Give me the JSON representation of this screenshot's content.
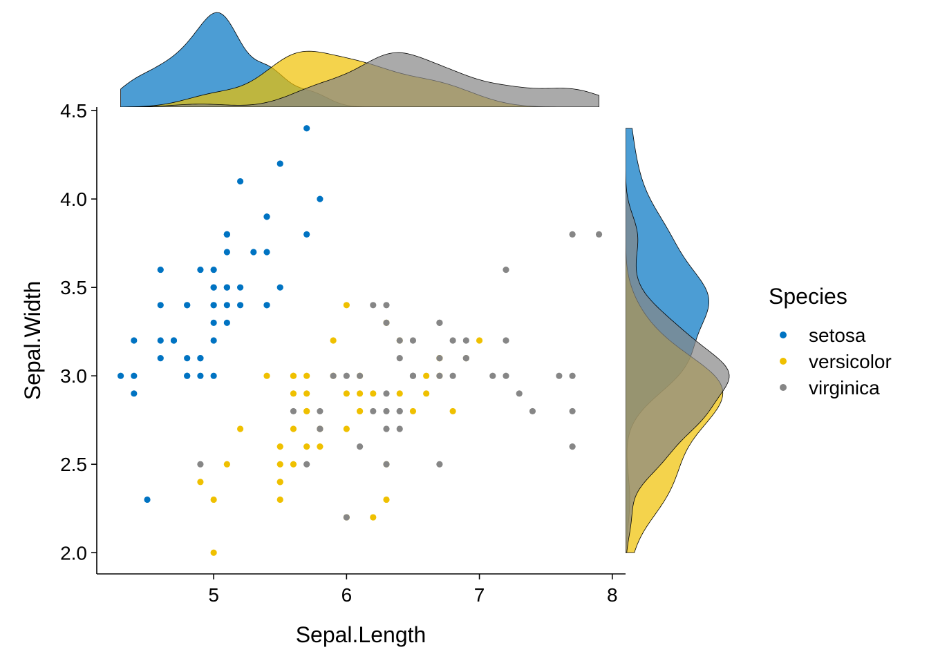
{
  "chart_data": {
    "type": "scatter",
    "xlabel": "Sepal.Length",
    "ylabel": "Sepal.Width",
    "xlim": [
      4.12,
      8.1
    ],
    "ylim": [
      1.88,
      4.52
    ],
    "x_ticks": [
      5,
      6,
      7,
      8
    ],
    "y_ticks": [
      2.0,
      2.5,
      3.0,
      3.5,
      4.0,
      4.5
    ],
    "x_tick_labels": [
      "5",
      "6",
      "7",
      "8"
    ],
    "y_tick_labels": [
      "2.0",
      "2.5",
      "3.0",
      "3.5",
      "4.0",
      "4.5"
    ],
    "marginal_plots": "density",
    "legend": {
      "title": "Species",
      "position": "right",
      "entries": [
        "setosa",
        "versicolor",
        "virginica"
      ]
    },
    "colors": {
      "setosa": "#0073C2",
      "versicolor": "#EFC000",
      "virginica": "#868686"
    },
    "series": [
      {
        "name": "setosa",
        "points": [
          [
            5.1,
            3.5
          ],
          [
            4.9,
            3.0
          ],
          [
            4.7,
            3.2
          ],
          [
            4.6,
            3.1
          ],
          [
            5.0,
            3.6
          ],
          [
            5.4,
            3.9
          ],
          [
            4.6,
            3.4
          ],
          [
            5.0,
            3.4
          ],
          [
            4.4,
            2.9
          ],
          [
            4.9,
            3.1
          ],
          [
            5.4,
            3.7
          ],
          [
            4.8,
            3.4
          ],
          [
            4.8,
            3.0
          ],
          [
            4.3,
            3.0
          ],
          [
            5.8,
            4.0
          ],
          [
            5.7,
            4.4
          ],
          [
            5.4,
            3.9
          ],
          [
            5.1,
            3.5
          ],
          [
            5.7,
            3.8
          ],
          [
            5.1,
            3.8
          ],
          [
            5.4,
            3.4
          ],
          [
            5.1,
            3.7
          ],
          [
            4.6,
            3.6
          ],
          [
            5.1,
            3.3
          ],
          [
            4.8,
            3.4
          ],
          [
            5.0,
            3.0
          ],
          [
            5.0,
            3.4
          ],
          [
            5.2,
            3.5
          ],
          [
            5.2,
            3.4
          ],
          [
            4.7,
            3.2
          ],
          [
            4.8,
            3.1
          ],
          [
            5.4,
            3.4
          ],
          [
            5.2,
            4.1
          ],
          [
            5.5,
            4.2
          ],
          [
            4.9,
            3.1
          ],
          [
            5.0,
            3.2
          ],
          [
            5.5,
            3.5
          ],
          [
            4.9,
            3.6
          ],
          [
            4.4,
            3.0
          ],
          [
            5.1,
            3.4
          ],
          [
            5.0,
            3.5
          ],
          [
            4.5,
            2.3
          ],
          [
            4.4,
            3.2
          ],
          [
            5.0,
            3.5
          ],
          [
            5.1,
            3.8
          ],
          [
            4.8,
            3.0
          ],
          [
            5.1,
            3.8
          ],
          [
            4.6,
            3.2
          ],
          [
            5.3,
            3.7
          ],
          [
            5.0,
            3.3
          ]
        ]
      },
      {
        "name": "versicolor",
        "points": [
          [
            7.0,
            3.2
          ],
          [
            6.4,
            3.2
          ],
          [
            6.9,
            3.1
          ],
          [
            5.5,
            2.3
          ],
          [
            6.5,
            2.8
          ],
          [
            5.7,
            2.8
          ],
          [
            6.3,
            3.3
          ],
          [
            4.9,
            2.4
          ],
          [
            6.6,
            2.9
          ],
          [
            5.2,
            2.7
          ],
          [
            5.0,
            2.0
          ],
          [
            5.9,
            3.0
          ],
          [
            6.0,
            2.2
          ],
          [
            6.1,
            2.9
          ],
          [
            5.6,
            2.9
          ],
          [
            6.7,
            3.1
          ],
          [
            5.6,
            3.0
          ],
          [
            5.8,
            2.7
          ],
          [
            6.2,
            2.2
          ],
          [
            5.6,
            2.5
          ],
          [
            5.9,
            3.2
          ],
          [
            6.1,
            2.8
          ],
          [
            6.3,
            2.5
          ],
          [
            6.1,
            2.8
          ],
          [
            6.4,
            2.9
          ],
          [
            6.6,
            3.0
          ],
          [
            6.8,
            2.8
          ],
          [
            6.7,
            3.0
          ],
          [
            6.0,
            2.9
          ],
          [
            5.7,
            2.6
          ],
          [
            5.5,
            2.4
          ],
          [
            5.5,
            2.4
          ],
          [
            5.8,
            2.7
          ],
          [
            6.0,
            2.7
          ],
          [
            5.4,
            3.0
          ],
          [
            6.0,
            3.4
          ],
          [
            6.7,
            3.1
          ],
          [
            6.3,
            2.3
          ],
          [
            5.6,
            3.0
          ],
          [
            5.5,
            2.5
          ],
          [
            5.5,
            2.6
          ],
          [
            6.1,
            3.0
          ],
          [
            5.8,
            2.6
          ],
          [
            5.0,
            2.3
          ],
          [
            5.6,
            2.7
          ],
          [
            5.7,
            3.0
          ],
          [
            5.7,
            2.9
          ],
          [
            6.2,
            2.9
          ],
          [
            5.1,
            2.5
          ],
          [
            5.7,
            2.8
          ]
        ]
      },
      {
        "name": "virginica",
        "points": [
          [
            6.3,
            3.3
          ],
          [
            5.8,
            2.7
          ],
          [
            7.1,
            3.0
          ],
          [
            6.3,
            2.9
          ],
          [
            6.5,
            3.0
          ],
          [
            7.6,
            3.0
          ],
          [
            4.9,
            2.5
          ],
          [
            7.3,
            2.9
          ],
          [
            6.7,
            2.5
          ],
          [
            7.2,
            3.6
          ],
          [
            6.5,
            3.2
          ],
          [
            6.4,
            2.7
          ],
          [
            6.8,
            3.0
          ],
          [
            5.7,
            2.5
          ],
          [
            5.8,
            2.8
          ],
          [
            6.4,
            3.2
          ],
          [
            6.5,
            3.0
          ],
          [
            7.7,
            3.8
          ],
          [
            7.7,
            2.6
          ],
          [
            6.0,
            2.2
          ],
          [
            6.9,
            3.2
          ],
          [
            5.6,
            2.8
          ],
          [
            7.7,
            2.8
          ],
          [
            6.3,
            2.7
          ],
          [
            6.7,
            3.3
          ],
          [
            7.2,
            3.2
          ],
          [
            6.2,
            2.8
          ],
          [
            6.1,
            3.0
          ],
          [
            6.4,
            2.8
          ],
          [
            7.2,
            3.0
          ],
          [
            7.4,
            2.8
          ],
          [
            7.9,
            3.8
          ],
          [
            6.4,
            2.8
          ],
          [
            6.3,
            2.8
          ],
          [
            6.1,
            2.6
          ],
          [
            7.7,
            3.0
          ],
          [
            6.3,
            3.4
          ],
          [
            6.4,
            3.1
          ],
          [
            6.0,
            3.0
          ],
          [
            6.9,
            3.1
          ],
          [
            6.7,
            3.1
          ],
          [
            6.9,
            3.1
          ],
          [
            5.8,
            2.7
          ],
          [
            6.8,
            3.2
          ],
          [
            6.7,
            3.3
          ],
          [
            6.7,
            3.0
          ],
          [
            6.3,
            2.5
          ],
          [
            6.5,
            3.0
          ],
          [
            6.2,
            3.4
          ],
          [
            5.9,
            3.0
          ]
        ]
      }
    ]
  }
}
